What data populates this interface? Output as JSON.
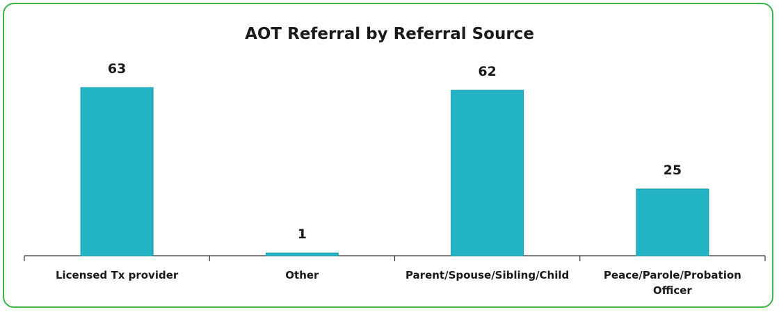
{
  "chart_data": {
    "type": "bar",
    "title": "AOT Referral by Referral Source",
    "categories": [
      "Licensed Tx provider",
      "Other",
      "Parent/Spouse/Sibling/Child",
      "Peace/Parole/Probation Officer"
    ],
    "values": [
      63,
      1,
      62,
      25
    ],
    "color": "#22b4c4"
  }
}
